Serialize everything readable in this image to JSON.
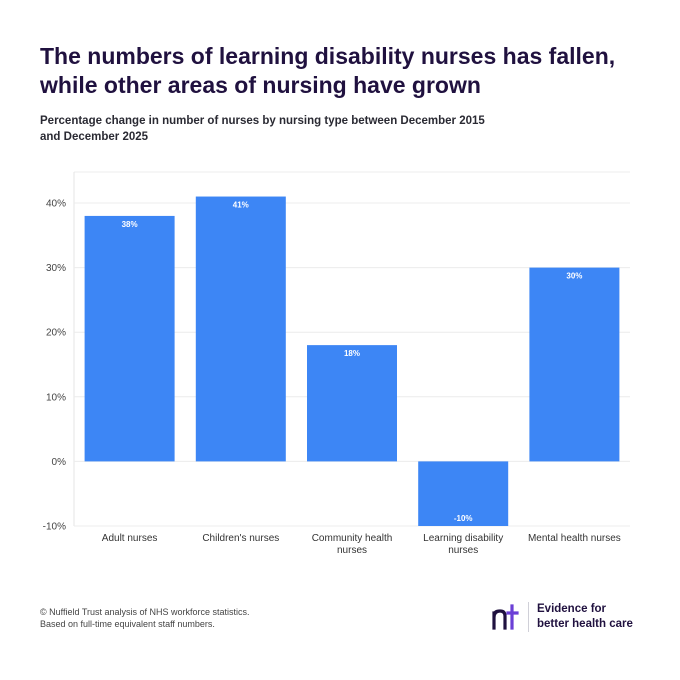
{
  "title": "The numbers of learning disability nurses has fallen, while other areas of nursing have grown",
  "subtitle": "Percentage change in number of nurses by nursing type between December 2015 and December 2025",
  "chart_data": {
    "type": "bar",
    "categories": [
      "Adult nurses",
      "Children's nurses",
      "Community health nurses",
      "Learning disability nurses",
      "Mental health nurses"
    ],
    "category_lines": [
      [
        "Adult nurses"
      ],
      [
        "Children's nurses"
      ],
      [
        "Community health",
        "nurses"
      ],
      [
        "Learning disability",
        "nurses"
      ],
      [
        "Mental health nurses"
      ]
    ],
    "values": [
      38,
      41,
      18,
      -10,
      30
    ],
    "data_labels": [
      "38%",
      "41%",
      "18%",
      "-10%",
      "30%"
    ],
    "yticks": [
      -10,
      0,
      10,
      20,
      30,
      40
    ],
    "ytick_labels": [
      "-10%",
      "0%",
      "10%",
      "20%",
      "30%",
      "40%"
    ],
    "ylim": [
      -10,
      45
    ],
    "grid": true,
    "bar_color": "#3d86f5"
  },
  "source": {
    "line1": "© Nuffield Trust analysis of NHS workforce statistics.",
    "line2": "Based on full-time equivalent staff numbers."
  },
  "brand": {
    "logo_icon": "nuffield-trust-nt-logo-icon",
    "tagline_line1": "Evidence for",
    "tagline_line2": "better health care",
    "accent": "#6b3fd6"
  }
}
